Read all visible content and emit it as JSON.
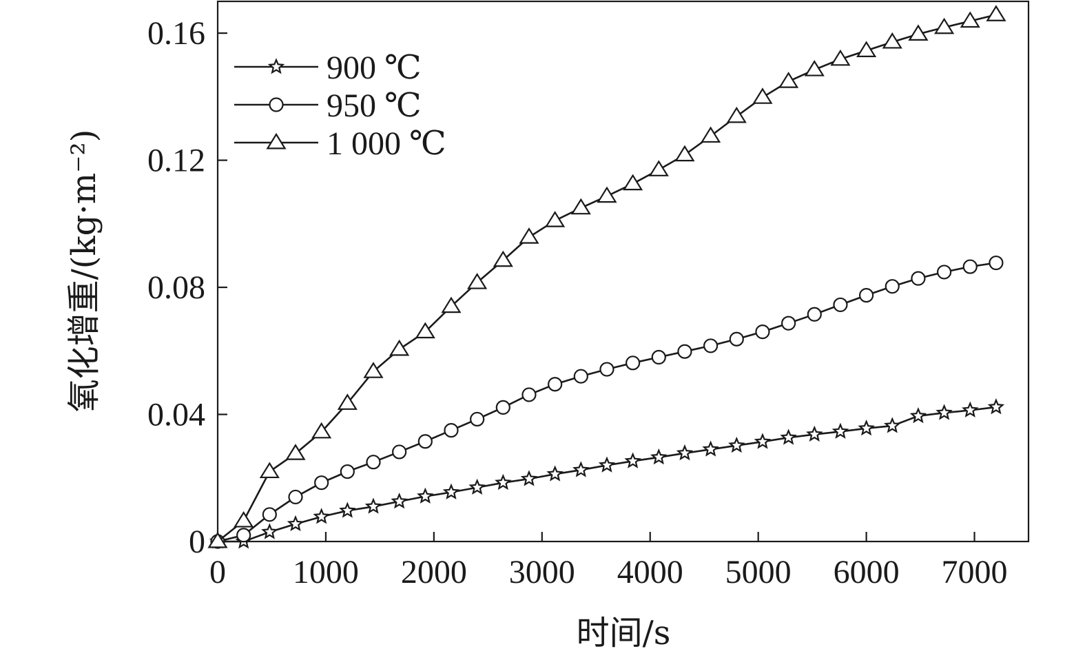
{
  "chart_data": {
    "type": "line",
    "xlabel": "时间/s",
    "ylabel": "氧化增重/(kg·m⁻²)",
    "xlim": [
      0,
      7500
    ],
    "ylim": [
      0,
      0.17
    ],
    "x_ticks": [
      0,
      1000,
      2000,
      3000,
      4000,
      5000,
      6000,
      7000
    ],
    "x_tick_labels": [
      "0",
      "1000",
      "2000",
      "3000",
      "4000",
      "5000",
      "6000",
      "7000"
    ],
    "y_ticks": [
      0,
      0.04,
      0.08,
      0.12,
      0.16
    ],
    "y_tick_labels": [
      "0",
      "0.04",
      "0.08",
      "0.12",
      "0.16"
    ],
    "grid": false,
    "legend_position": "top-left",
    "series": [
      {
        "name": "900 ℃",
        "marker": "star",
        "x": [
          0,
          240,
          480,
          720,
          960,
          1200,
          1440,
          1680,
          1920,
          2160,
          2400,
          2640,
          2880,
          3120,
          3360,
          3600,
          3840,
          4080,
          4320,
          4560,
          4800,
          5040,
          5280,
          5520,
          5760,
          6000,
          6240,
          6480,
          6720,
          6960,
          7200
        ],
        "y": [
          0,
          0,
          0.003,
          0.0055,
          0.0078,
          0.0097,
          0.011,
          0.0126,
          0.0142,
          0.0155,
          0.017,
          0.0185,
          0.0197,
          0.0212,
          0.0225,
          0.024,
          0.0253,
          0.0265,
          0.0278,
          0.029,
          0.0302,
          0.0314,
          0.0327,
          0.0337,
          0.0346,
          0.0356,
          0.0364,
          0.0395,
          0.0405,
          0.0413,
          0.0423
        ]
      },
      {
        "name": "950 ℃",
        "marker": "circle",
        "x": [
          0,
          240,
          480,
          720,
          960,
          1200,
          1440,
          1680,
          1920,
          2160,
          2400,
          2640,
          2880,
          3120,
          3360,
          3600,
          3840,
          4080,
          4320,
          4560,
          4800,
          5040,
          5280,
          5520,
          5760,
          6000,
          6240,
          6480,
          6720,
          6960,
          7200
        ],
        "y": [
          0,
          0.002,
          0.0085,
          0.014,
          0.0185,
          0.022,
          0.025,
          0.0282,
          0.0315,
          0.035,
          0.0385,
          0.0422,
          0.0462,
          0.0495,
          0.052,
          0.0542,
          0.0562,
          0.058,
          0.0598,
          0.0616,
          0.0637,
          0.066,
          0.0687,
          0.0715,
          0.0745,
          0.0775,
          0.0803,
          0.0828,
          0.0848,
          0.0865,
          0.0877
        ]
      },
      {
        "name": "1 000 ℃",
        "marker": "triangle",
        "x": [
          0,
          240,
          480,
          720,
          960,
          1200,
          1440,
          1680,
          1920,
          2160,
          2400,
          2640,
          2880,
          3120,
          3360,
          3600,
          3840,
          4080,
          4320,
          4560,
          4800,
          5040,
          5280,
          5520,
          5760,
          6000,
          6240,
          6480,
          6720,
          6960,
          7200
        ],
        "y": [
          0,
          0.0065,
          0.022,
          0.0277,
          0.0345,
          0.0435,
          0.0535,
          0.0605,
          0.066,
          0.074,
          0.0815,
          0.0885,
          0.0958,
          0.101,
          0.105,
          0.1087,
          0.1126,
          0.117,
          0.1217,
          0.1276,
          0.1338,
          0.1398,
          0.1448,
          0.1485,
          0.1518,
          0.1545,
          0.1572,
          0.1597,
          0.1618,
          0.1638,
          0.1658
        ]
      }
    ]
  }
}
